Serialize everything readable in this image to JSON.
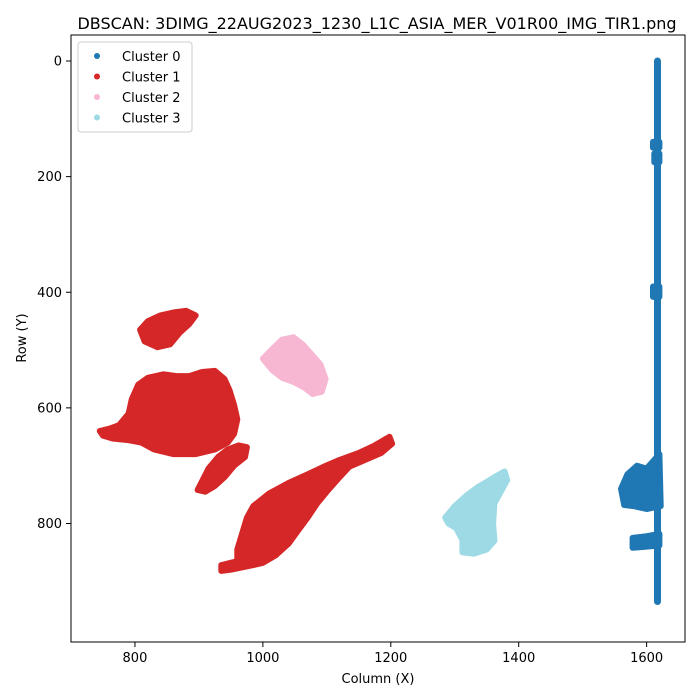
{
  "chart_data": {
    "type": "scatter",
    "title": "DBSCAN: 3DIMG_22AUG2023_1230_L1C_ASIA_MER_V01R00_IMG_TIR1.png",
    "xlabel": "Column (X)",
    "ylabel": "Row (Y)",
    "xlim": [
      700,
      1660
    ],
    "ylim": [
      1005,
      -45
    ],
    "y_inverted": true,
    "xticks": [
      800,
      1000,
      1200,
      1400,
      1600
    ],
    "yticks": [
      0,
      200,
      400,
      600,
      800
    ],
    "grid": false,
    "legend_position": "top-left",
    "series": [
      {
        "name": "Cluster 0",
        "color": "#1f77b4",
        "regions": [
          {
            "kind": "line",
            "x": [
              1617,
              1617
            ],
            "y": [
              0,
              935
            ]
          },
          {
            "kind": "polygon",
            "points": [
              [
                1610,
                140
              ],
              [
                1620,
                140
              ],
              [
                1620,
                150
              ],
              [
                1610,
                150
              ]
            ]
          },
          {
            "kind": "polygon",
            "points": [
              [
                1612,
                160
              ],
              [
                1620,
                160
              ],
              [
                1620,
                175
              ],
              [
                1612,
                175
              ]
            ]
          },
          {
            "kind": "polygon",
            "points": [
              [
                1610,
                390
              ],
              [
                1620,
                390
              ],
              [
                1620,
                408
              ],
              [
                1610,
                408
              ]
            ]
          },
          {
            "kind": "polygon",
            "points": [
              [
                1560,
                740
              ],
              [
                1570,
                715
              ],
              [
                1585,
                700
              ],
              [
                1600,
                705
              ],
              [
                1612,
                690
              ],
              [
                1620,
                680
              ],
              [
                1622,
                770
              ],
              [
                1600,
                775
              ],
              [
                1580,
                770
              ],
              [
                1565,
                768
              ]
            ]
          },
          {
            "kind": "polygon",
            "points": [
              [
                1578,
                825
              ],
              [
                1600,
                822
              ],
              [
                1620,
                818
              ],
              [
                1620,
                838
              ],
              [
                1600,
                840
              ],
              [
                1578,
                842
              ]
            ]
          }
        ]
      },
      {
        "name": "Cluster 1",
        "color": "#d62728",
        "regions": [
          {
            "kind": "polygon",
            "points": [
              [
                808,
                465
              ],
              [
                820,
                450
              ],
              [
                840,
                440
              ],
              [
                860,
                435
              ],
              [
                880,
                432
              ],
              [
                895,
                440
              ],
              [
                885,
                455
              ],
              [
                870,
                470
              ],
              [
                855,
                490
              ],
              [
                835,
                495
              ],
              [
                815,
                485
              ]
            ]
          },
          {
            "kind": "polygon",
            "points": [
              [
                745,
                640
              ],
              [
                760,
                636
              ],
              [
                775,
                630
              ],
              [
                790,
                610
              ],
              [
                795,
                585
              ],
              [
                805,
                560
              ],
              [
                820,
                548
              ],
              [
                845,
                542
              ],
              [
                865,
                545
              ],
              [
                885,
                545
              ],
              [
                905,
                538
              ],
              [
                925,
                536
              ],
              [
                940,
                550
              ],
              [
                948,
                570
              ],
              [
                955,
                595
              ],
              [
                960,
                620
              ],
              [
                955,
                645
              ],
              [
                945,
                660
              ],
              [
                925,
                672
              ],
              [
                895,
                680
              ],
              [
                860,
                680
              ],
              [
                830,
                672
              ],
              [
                810,
                660
              ],
              [
                790,
                656
              ],
              [
                765,
                653
              ],
              [
                750,
                648
              ]
            ]
          },
          {
            "kind": "polygon",
            "points": [
              [
                915,
                705
              ],
              [
                930,
                685
              ],
              [
                945,
                672
              ],
              [
                962,
                665
              ],
              [
                975,
                668
              ],
              [
                972,
                685
              ],
              [
                955,
                700
              ],
              [
                940,
                720
              ],
              [
                925,
                735
              ],
              [
                910,
                745
              ],
              [
                898,
                742
              ]
            ]
          },
          {
            "kind": "polygon",
            "points": [
              [
                975,
                790
              ],
              [
                985,
                770
              ],
              [
                1010,
                748
              ],
              [
                1040,
                730
              ],
              [
                1070,
                715
              ],
              [
                1095,
                702
              ],
              [
                1120,
                690
              ],
              [
                1150,
                678
              ],
              [
                1175,
                665
              ],
              [
                1198,
                650
              ],
              [
                1202,
                662
              ],
              [
                1185,
                678
              ],
              [
                1160,
                690
              ],
              [
                1135,
                702
              ],
              [
                1120,
                720
              ],
              [
                1100,
                745
              ],
              [
                1085,
                765
              ],
              [
                1070,
                790
              ],
              [
                1055,
                812
              ],
              [
                1040,
                835
              ],
              [
                1020,
                855
              ],
              [
                1000,
                868
              ],
              [
                985,
                872
              ],
              [
                950,
                880
              ],
              [
                935,
                882
              ],
              [
                935,
                872
              ],
              [
                960,
                865
              ],
              [
                960,
                845
              ]
            ]
          }
        ]
      },
      {
        "name": "Cluster 2",
        "color": "#f7b6d2",
        "regions": [
          {
            "kind": "polygon",
            "points": [
              [
                1000,
                515
              ],
              [
                1015,
                498
              ],
              [
                1030,
                482
              ],
              [
                1048,
                478
              ],
              [
                1062,
                490
              ],
              [
                1078,
                510
              ],
              [
                1090,
                525
              ],
              [
                1098,
                550
              ],
              [
                1092,
                572
              ],
              [
                1078,
                576
              ],
              [
                1065,
                565
              ],
              [
                1048,
                555
              ],
              [
                1030,
                548
              ],
              [
                1015,
                535
              ]
            ]
          }
        ]
      },
      {
        "name": "Cluster 3",
        "color": "#9edae5",
        "regions": [
          {
            "kind": "polygon",
            "points": [
              [
                1285,
                790
              ],
              [
                1300,
                770
              ],
              [
                1318,
                752
              ],
              [
                1335,
                738
              ],
              [
                1350,
                728
              ],
              [
                1365,
                718
              ],
              [
                1378,
                710
              ],
              [
                1382,
                725
              ],
              [
                1372,
                745
              ],
              [
                1362,
                765
              ],
              [
                1360,
                800
              ],
              [
                1362,
                830
              ],
              [
                1350,
                845
              ],
              [
                1330,
                852
              ],
              [
                1312,
                850
              ],
              [
                1312,
                828
              ],
              [
                1302,
                808
              ],
              [
                1290,
                800
              ]
            ]
          }
        ]
      }
    ]
  }
}
